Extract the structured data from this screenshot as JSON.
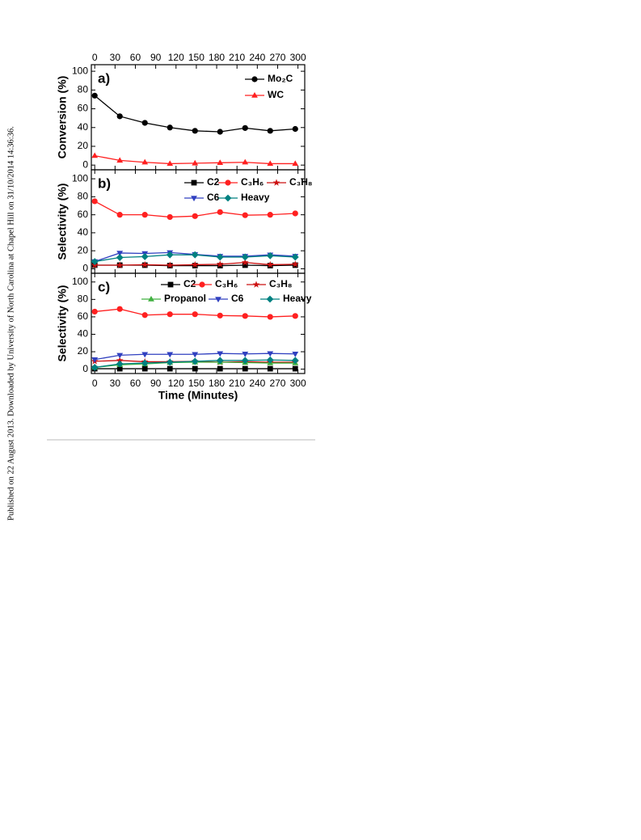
{
  "sidebar": "Published on 22 August 2013. Downloaded by University of North Carolina at Chapel Hill on 31/10/2014 14:36:36.",
  "chart_data": [
    {
      "type": "line",
      "panel_label": "a)",
      "ylabel": "Conversion (%)",
      "x": [
        0,
        37,
        74,
        111,
        148,
        185,
        222,
        259,
        296
      ],
      "xlim": [
        -5,
        310
      ],
      "xticks": [
        0,
        30,
        60,
        90,
        120,
        150,
        180,
        210,
        240,
        270,
        300
      ],
      "ylim": [
        -5,
        107
      ],
      "yticks": [
        0,
        20,
        40,
        60,
        80,
        100
      ],
      "series": [
        {
          "name": "Mo₂C",
          "color": "#000000",
          "marker": "circle",
          "values": [
            74,
            52,
            45,
            40,
            36.5,
            35.5,
            39.5,
            36.5,
            38.5
          ]
        },
        {
          "name": "WC",
          "color": "#ff2020",
          "marker": "triangle-up",
          "values": [
            10,
            5,
            3,
            1.5,
            2,
            2.5,
            3,
            1.5,
            1.5
          ]
        }
      ]
    },
    {
      "type": "line",
      "panel_label": "b)",
      "ylabel": "Selectivity (%)",
      "x": [
        0,
        37,
        74,
        111,
        148,
        185,
        222,
        259,
        296
      ],
      "xlim": [
        -5,
        310
      ],
      "xticks": [
        0,
        30,
        60,
        90,
        120,
        150,
        180,
        210,
        240,
        270,
        300
      ],
      "ylim": [
        -5,
        110
      ],
      "yticks": [
        0,
        20,
        40,
        60,
        80,
        100
      ],
      "series": [
        {
          "name": "C2",
          "color": "#000000",
          "marker": "square",
          "values": [
            4,
            4,
            4,
            3.5,
            3.5,
            3.5,
            4,
            3.5,
            4
          ]
        },
        {
          "name": "C₃H₆",
          "color": "#ff2020",
          "marker": "circle",
          "values": [
            75,
            60,
            60,
            57.5,
            58.5,
            63,
            59.5,
            60,
            61.5
          ]
        },
        {
          "name": "C₃H₈",
          "color": "#cc1010",
          "marker": "star",
          "values": [
            4,
            4,
            4.5,
            4,
            4.5,
            5,
            7,
            4.5,
            5
          ]
        },
        {
          "name": "C6",
          "color": "#3040c0",
          "marker": "triangle-down",
          "values": [
            8,
            17.5,
            17,
            18,
            16,
            14,
            14,
            15.5,
            14
          ]
        },
        {
          "name": "Heavy",
          "color": "#008080",
          "marker": "diamond",
          "values": [
            8,
            12.5,
            13.5,
            15.5,
            15.5,
            13,
            13,
            14.5,
            13
          ]
        }
      ]
    },
    {
      "type": "line",
      "panel_label": "c)",
      "ylabel": "Selectivity (%)",
      "xlabel": "Time (Minutes)",
      "x": [
        0,
        37,
        74,
        111,
        148,
        185,
        222,
        259,
        296
      ],
      "xlim": [
        -5,
        310
      ],
      "xticks": [
        0,
        30,
        60,
        90,
        120,
        150,
        180,
        210,
        240,
        270,
        300
      ],
      "ylim": [
        -5,
        110
      ],
      "yticks": [
        0,
        20,
        40,
        60,
        80,
        100
      ],
      "series": [
        {
          "name": "C2",
          "color": "#000000",
          "marker": "square",
          "values": [
            0.5,
            0.5,
            0.5,
            0.5,
            0.5,
            0.5,
            0.5,
            0.5,
            0.5
          ]
        },
        {
          "name": "C₃H₆",
          "color": "#ff2020",
          "marker": "circle",
          "values": [
            66,
            69,
            62,
            63,
            63,
            61.5,
            61,
            60,
            61
          ]
        },
        {
          "name": "C₃H₈",
          "color": "#cc1010",
          "marker": "star",
          "values": [
            9,
            10,
            8.5,
            8.5,
            9,
            8,
            8.5,
            8,
            8
          ]
        },
        {
          "name": "Propanol",
          "color": "#40b040",
          "marker": "triangle-up",
          "values": [
            2,
            5,
            6,
            7.5,
            8,
            8,
            7.5,
            7,
            7
          ]
        },
        {
          "name": "C6",
          "color": "#3040c0",
          "marker": "triangle-down",
          "values": [
            11,
            16,
            17,
            17,
            17,
            18,
            17.5,
            18,
            17.5
          ]
        },
        {
          "name": "Heavy",
          "color": "#008080",
          "marker": "diamond",
          "values": [
            2,
            6,
            7,
            8,
            9,
            10,
            10,
            10.5,
            10
          ]
        }
      ]
    }
  ]
}
